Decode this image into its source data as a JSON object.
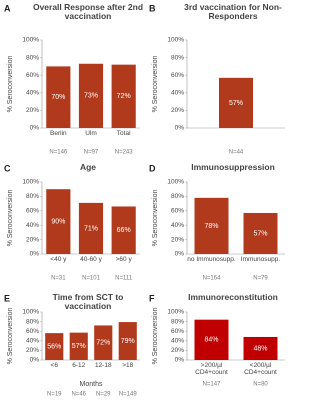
{
  "chart_data": [
    {
      "type": "bar",
      "panel": "A",
      "title": "Overall Response after 2nd vaccination",
      "ylabel": "% Seroconversion",
      "categories": [
        "Berlin",
        "Ulm",
        "Total"
      ],
      "values": [
        70,
        73,
        72
      ],
      "value_labels": [
        "70%",
        "73%",
        "72%"
      ],
      "n_labels": [
        "N=146",
        "N=97",
        "N=243"
      ],
      "color": "#b23a1c",
      "ylim": [
        0,
        100
      ],
      "yticks": [
        {
          "value": 0,
          "label": "0%"
        },
        {
          "value": 20,
          "label": "20%"
        },
        {
          "value": 40,
          "label": "40%"
        },
        {
          "value": 60,
          "label": "60%"
        },
        {
          "value": 80,
          "label": "80%"
        },
        {
          "value": 100,
          "label": "100%"
        }
      ]
    },
    {
      "type": "bar",
      "panel": "B",
      "title": "3rd vaccination for Non-Responders",
      "ylabel": "% Seroconversion",
      "categories": [
        null
      ],
      "values": [
        57
      ],
      "value_labels": [
        "57%"
      ],
      "n_labels": [
        "N=44"
      ],
      "color": "#b23a1c",
      "ylim": [
        0,
        100
      ],
      "yticks": [
        {
          "value": 0,
          "label": "0%"
        },
        {
          "value": 20,
          "label": "20%"
        },
        {
          "value": 40,
          "label": "40%"
        },
        {
          "value": 60,
          "label": "60%"
        },
        {
          "value": 80,
          "label": "80%"
        },
        {
          "value": 100,
          "label": "100%"
        }
      ]
    },
    {
      "type": "bar",
      "panel": "C",
      "title": "Age",
      "ylabel": "% Seroconversion",
      "categories": [
        "<40 y",
        "40-60 y",
        ">60 y"
      ],
      "values": [
        90,
        71,
        66
      ],
      "value_labels": [
        "90%",
        "71%",
        "66%"
      ],
      "n_labels": [
        "N=31",
        "N=101",
        "N=111"
      ],
      "color": "#b23a1c",
      "ylim": [
        0,
        100
      ],
      "yticks": [
        {
          "value": 0,
          "label": "0%"
        },
        {
          "value": 20,
          "label": "20%"
        },
        {
          "value": 40,
          "label": "40%"
        },
        {
          "value": 60,
          "label": "60%"
        },
        {
          "value": 80,
          "label": "80%"
        },
        {
          "value": 100,
          "label": "100%"
        }
      ]
    },
    {
      "type": "bar",
      "panel": "D",
      "title": "Immunosuppression",
      "ylabel": "% Seroconversion",
      "categories": [
        "no Immunosupp.",
        "Immunosupp."
      ],
      "values": [
        78,
        57
      ],
      "value_labels": [
        "78%",
        "57%"
      ],
      "n_labels": [
        "N=164",
        "N=79"
      ],
      "color": "#b23a1c",
      "ylim": [
        0,
        100
      ],
      "yticks": [
        {
          "value": 0,
          "label": "0%"
        },
        {
          "value": 20,
          "label": "20%"
        },
        {
          "value": 40,
          "label": "40%"
        },
        {
          "value": 60,
          "label": "60%"
        },
        {
          "value": 80,
          "label": "80%"
        },
        {
          "value": 100,
          "label": "100%"
        }
      ]
    },
    {
      "type": "bar",
      "panel": "E",
      "title": "Time from SCT to vaccination",
      "ylabel": "% Seroconversion",
      "xlabel": "Months",
      "categories": [
        "<6",
        "6-12",
        "12-18",
        ">18"
      ],
      "values": [
        56,
        57,
        72,
        79
      ],
      "value_labels": [
        "56%",
        "57%",
        "72%",
        "79%"
      ],
      "n_labels": [
        "N=19",
        "N=46",
        "N=29",
        "N=149"
      ],
      "color": "#b23a1c",
      "ylim": [
        0,
        100
      ],
      "yticks": [
        {
          "value": 0,
          "label": "0%"
        },
        {
          "value": 20,
          "label": "20%"
        },
        {
          "value": 40,
          "label": "40%"
        },
        {
          "value": 60,
          "label": "60%"
        },
        {
          "value": 80,
          "label": "80%"
        },
        {
          "value": 100,
          "label": "100%"
        }
      ]
    },
    {
      "type": "bar",
      "panel": "F",
      "title": "Immunoreconstitution",
      "ylabel": "% Seroconversion",
      "categories": [
        ">200/µl CD4+count",
        "<200/µl CD4+count"
      ],
      "values": [
        84,
        48
      ],
      "value_labels": [
        "84%",
        "48%"
      ],
      "n_labels": [
        "N=147",
        "N=80"
      ],
      "color": "#c00000",
      "ylim": [
        0,
        100
      ],
      "yticks": [
        {
          "value": 0,
          "label": "0%"
        },
        {
          "value": 20,
          "label": "20%"
        },
        {
          "value": 40,
          "label": "40%"
        },
        {
          "value": 60,
          "label": "60%"
        },
        {
          "value": 80,
          "label": "80%"
        },
        {
          "value": 100,
          "label": "100%"
        }
      ]
    }
  ]
}
